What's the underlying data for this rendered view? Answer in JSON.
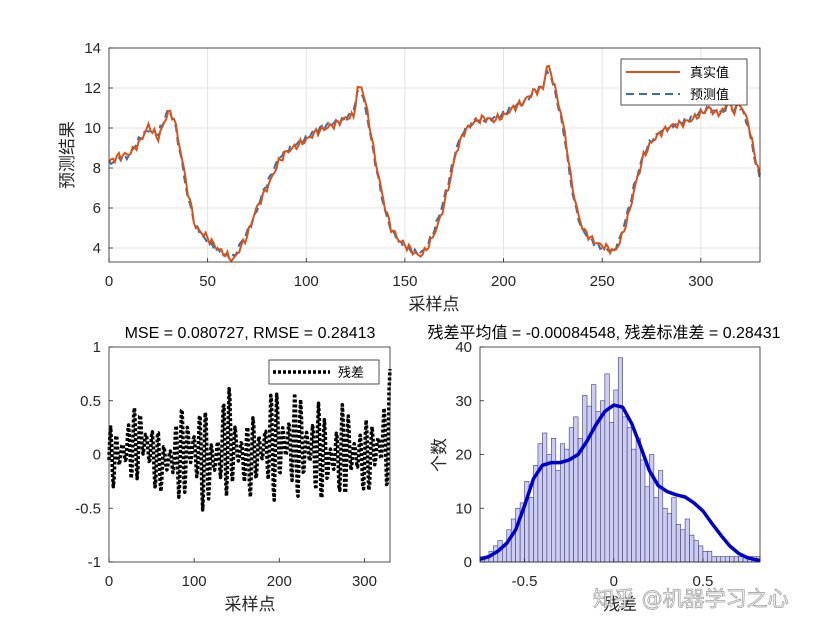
{
  "watermark": "知乎 @机器学习之心",
  "chart_data": [
    {
      "id": "top",
      "type": "line",
      "ylabel": "预测结果",
      "xlabel": "采样点",
      "xlim": [
        0,
        330
      ],
      "ylim": [
        3.3,
        14
      ],
      "xticks": [
        0,
        50,
        100,
        150,
        200,
        250,
        300
      ],
      "yticks": [
        4,
        6,
        8,
        10,
        12,
        14
      ],
      "grid": true,
      "legend": "top-right",
      "series": [
        {
          "name": "真实值",
          "color": "#D95319",
          "style": "solid",
          "keypoints": [
            [
              0,
              8.3
            ],
            [
              5,
              8.6
            ],
            [
              10,
              8.7
            ],
            [
              15,
              9.2
            ],
            [
              20,
              10.1
            ],
            [
              25,
              9.5
            ],
            [
              30,
              10.8
            ],
            [
              33,
              10.5
            ],
            [
              36,
              9.0
            ],
            [
              40,
              6.8
            ],
            [
              44,
              5.0
            ],
            [
              48,
              4.7
            ],
            [
              52,
              4.3
            ],
            [
              56,
              3.9
            ],
            [
              60,
              3.6
            ],
            [
              63,
              3.4
            ],
            [
              66,
              3.9
            ],
            [
              70,
              4.6
            ],
            [
              74,
              5.8
            ],
            [
              78,
              6.6
            ],
            [
              82,
              7.4
            ],
            [
              86,
              8.3
            ],
            [
              90,
              8.8
            ],
            [
              95,
              9.1
            ],
            [
              100,
              9.4
            ],
            [
              105,
              9.8
            ],
            [
              110,
              10.0
            ],
            [
              115,
              10.2
            ],
            [
              120,
              10.5
            ],
            [
              124,
              10.6
            ],
            [
              126,
              11.9
            ],
            [
              128,
              12.1
            ],
            [
              131,
              10.8
            ],
            [
              134,
              9.0
            ],
            [
              137,
              7.4
            ],
            [
              140,
              6.0
            ],
            [
              143,
              5.0
            ],
            [
              147,
              4.4
            ],
            [
              152,
              4.0
            ],
            [
              157,
              3.6
            ],
            [
              160,
              3.8
            ],
            [
              164,
              4.5
            ],
            [
              168,
              5.5
            ],
            [
              172,
              7.0
            ],
            [
              176,
              8.8
            ],
            [
              180,
              9.8
            ],
            [
              185,
              10.3
            ],
            [
              190,
              10.5
            ],
            [
              195,
              10.4
            ],
            [
              200,
              10.6
            ],
            [
              205,
              11.0
            ],
            [
              210,
              11.3
            ],
            [
              215,
              11.8
            ],
            [
              220,
              12.0
            ],
            [
              222,
              13.1
            ],
            [
              224,
              12.8
            ],
            [
              228,
              11.2
            ],
            [
              231,
              9.8
            ],
            [
              234,
              7.6
            ],
            [
              237,
              6.0
            ],
            [
              240,
              5.0
            ],
            [
              244,
              4.5
            ],
            [
              248,
              4.2
            ],
            [
              253,
              4.0
            ],
            [
              256,
              3.8
            ],
            [
              259,
              4.3
            ],
            [
              263,
              5.5
            ],
            [
              267,
              7.2
            ],
            [
              271,
              8.6
            ],
            [
              275,
              9.3
            ],
            [
              280,
              9.8
            ],
            [
              285,
              10.1
            ],
            [
              290,
              10.2
            ],
            [
              295,
              10.4
            ],
            [
              300,
              10.7
            ],
            [
              304,
              11.0
            ],
            [
              308,
              10.7
            ],
            [
              312,
              10.9
            ],
            [
              314,
              11.6
            ],
            [
              316,
              10.8
            ],
            [
              320,
              11.2
            ],
            [
              324,
              10.3
            ],
            [
              327,
              8.8
            ],
            [
              330,
              7.6
            ]
          ]
        },
        {
          "name": "预测值",
          "color": "#3A6FAE",
          "style": "dashed",
          "keypoints": [
            [
              0,
              8.2
            ],
            [
              5,
              8.5
            ],
            [
              10,
              8.6
            ],
            [
              15,
              9.4
            ],
            [
              20,
              9.9
            ],
            [
              25,
              9.7
            ],
            [
              30,
              10.9
            ],
            [
              33,
              10.4
            ],
            [
              36,
              8.8
            ],
            [
              40,
              6.5
            ],
            [
              44,
              5.1
            ],
            [
              48,
              4.5
            ],
            [
              52,
              4.1
            ],
            [
              56,
              3.8
            ],
            [
              60,
              3.6
            ],
            [
              63,
              3.5
            ],
            [
              66,
              4.1
            ],
            [
              70,
              4.8
            ],
            [
              74,
              5.6
            ],
            [
              78,
              6.8
            ],
            [
              82,
              7.6
            ],
            [
              86,
              8.5
            ],
            [
              90,
              8.9
            ],
            [
              95,
              9.2
            ],
            [
              100,
              9.5
            ],
            [
              105,
              9.9
            ],
            [
              110,
              10.1
            ],
            [
              115,
              10.3
            ],
            [
              120,
              10.4
            ],
            [
              124,
              11.0
            ],
            [
              126,
              11.7
            ],
            [
              128,
              11.8
            ],
            [
              131,
              10.5
            ],
            [
              134,
              8.8
            ],
            [
              137,
              7.2
            ],
            [
              140,
              5.8
            ],
            [
              143,
              4.9
            ],
            [
              147,
              4.3
            ],
            [
              152,
              3.9
            ],
            [
              157,
              3.7
            ],
            [
              160,
              3.9
            ],
            [
              164,
              4.7
            ],
            [
              168,
              5.8
            ],
            [
              172,
              7.3
            ],
            [
              176,
              9.0
            ],
            [
              180,
              9.9
            ],
            [
              185,
              10.4
            ],
            [
              190,
              10.4
            ],
            [
              195,
              10.5
            ],
            [
              200,
              10.7
            ],
            [
              205,
              11.1
            ],
            [
              210,
              11.2
            ],
            [
              215,
              11.7
            ],
            [
              220,
              12.1
            ],
            [
              222,
              12.8
            ],
            [
              224,
              12.6
            ],
            [
              228,
              11.0
            ],
            [
              231,
              9.5
            ],
            [
              234,
              7.3
            ],
            [
              237,
              5.8
            ],
            [
              240,
              4.9
            ],
            [
              244,
              4.4
            ],
            [
              248,
              4.1
            ],
            [
              253,
              3.9
            ],
            [
              256,
              3.9
            ],
            [
              259,
              4.5
            ],
            [
              263,
              5.8
            ],
            [
              267,
              7.4
            ],
            [
              271,
              8.7
            ],
            [
              275,
              9.4
            ],
            [
              280,
              9.9
            ],
            [
              285,
              10.1
            ],
            [
              290,
              10.3
            ],
            [
              295,
              10.5
            ],
            [
              300,
              10.8
            ],
            [
              304,
              10.9
            ],
            [
              308,
              10.8
            ],
            [
              312,
              10.8
            ],
            [
              314,
              11.4
            ],
            [
              316,
              10.9
            ],
            [
              320,
              11.1
            ],
            [
              324,
              10.1
            ],
            [
              327,
              8.6
            ],
            [
              330,
              7.4
            ]
          ]
        }
      ]
    },
    {
      "id": "residual",
      "type": "line",
      "title": "MSE = 0.080727, RMSE = 0.28413",
      "xlabel": "采样点",
      "xlim": [
        0,
        330
      ],
      "ylim": [
        -1,
        1
      ],
      "xticks": [
        0,
        100,
        200,
        300
      ],
      "yticks": [
        -1,
        -0.5,
        0,
        0.5,
        1
      ],
      "grid": false,
      "legend": "top-right",
      "series": [
        {
          "name": "残差",
          "color": "#000000",
          "style": "dotted"
        }
      ]
    },
    {
      "id": "hist",
      "type": "bar",
      "title": "残差平均值 = -0.00084548, 残差标准差 = 0.28431",
      "xlabel": "残差",
      "ylabel": "个数",
      "xlim": [
        -0.75,
        0.82
      ],
      "ylim": [
        0,
        40
      ],
      "xticks": [
        -0.5,
        0,
        0.5
      ],
      "yticks": [
        0,
        10,
        20,
        30,
        40
      ],
      "grid": false,
      "bin_start": -0.75,
      "bin_width": 0.025,
      "counts": [
        1,
        1,
        2,
        3,
        4,
        3,
        6,
        8,
        10,
        11,
        15,
        12,
        18,
        22,
        24,
        20,
        23,
        17,
        22,
        21,
        25,
        27,
        23,
        31,
        29,
        33,
        28,
        30,
        35,
        26,
        32,
        38,
        27,
        25,
        21,
        23,
        19,
        14,
        20,
        12,
        17,
        10,
        9,
        12,
        7,
        6,
        8,
        5,
        4,
        3,
        2,
        2,
        1,
        1,
        1,
        1,
        1,
        1,
        1,
        1,
        1,
        1,
        1
      ],
      "density_curve": {
        "color": "#0000CC",
        "points": [
          [
            -0.75,
            0.5
          ],
          [
            -0.7,
            1.0
          ],
          [
            -0.65,
            2.0
          ],
          [
            -0.6,
            3.5
          ],
          [
            -0.55,
            6.0
          ],
          [
            -0.5,
            10.5
          ],
          [
            -0.45,
            15.5
          ],
          [
            -0.4,
            18.0
          ],
          [
            -0.35,
            18.5
          ],
          [
            -0.3,
            18.5
          ],
          [
            -0.25,
            19.0
          ],
          [
            -0.2,
            20.0
          ],
          [
            -0.15,
            22.5
          ],
          [
            -0.1,
            25.5
          ],
          [
            -0.05,
            28.0
          ],
          [
            0.0,
            29.2
          ],
          [
            0.05,
            28.8
          ],
          [
            0.1,
            25.8
          ],
          [
            0.15,
            21.5
          ],
          [
            0.2,
            17.0
          ],
          [
            0.25,
            14.2
          ],
          [
            0.3,
            13.1
          ],
          [
            0.35,
            12.5
          ],
          [
            0.4,
            12.1
          ],
          [
            0.45,
            11.0
          ],
          [
            0.5,
            9.5
          ],
          [
            0.55,
            7.2
          ],
          [
            0.6,
            5.0
          ],
          [
            0.65,
            3.0
          ],
          [
            0.7,
            1.6
          ],
          [
            0.75,
            0.8
          ],
          [
            0.8,
            0.4
          ],
          [
            0.82,
            0.3
          ]
        ]
      }
    }
  ]
}
